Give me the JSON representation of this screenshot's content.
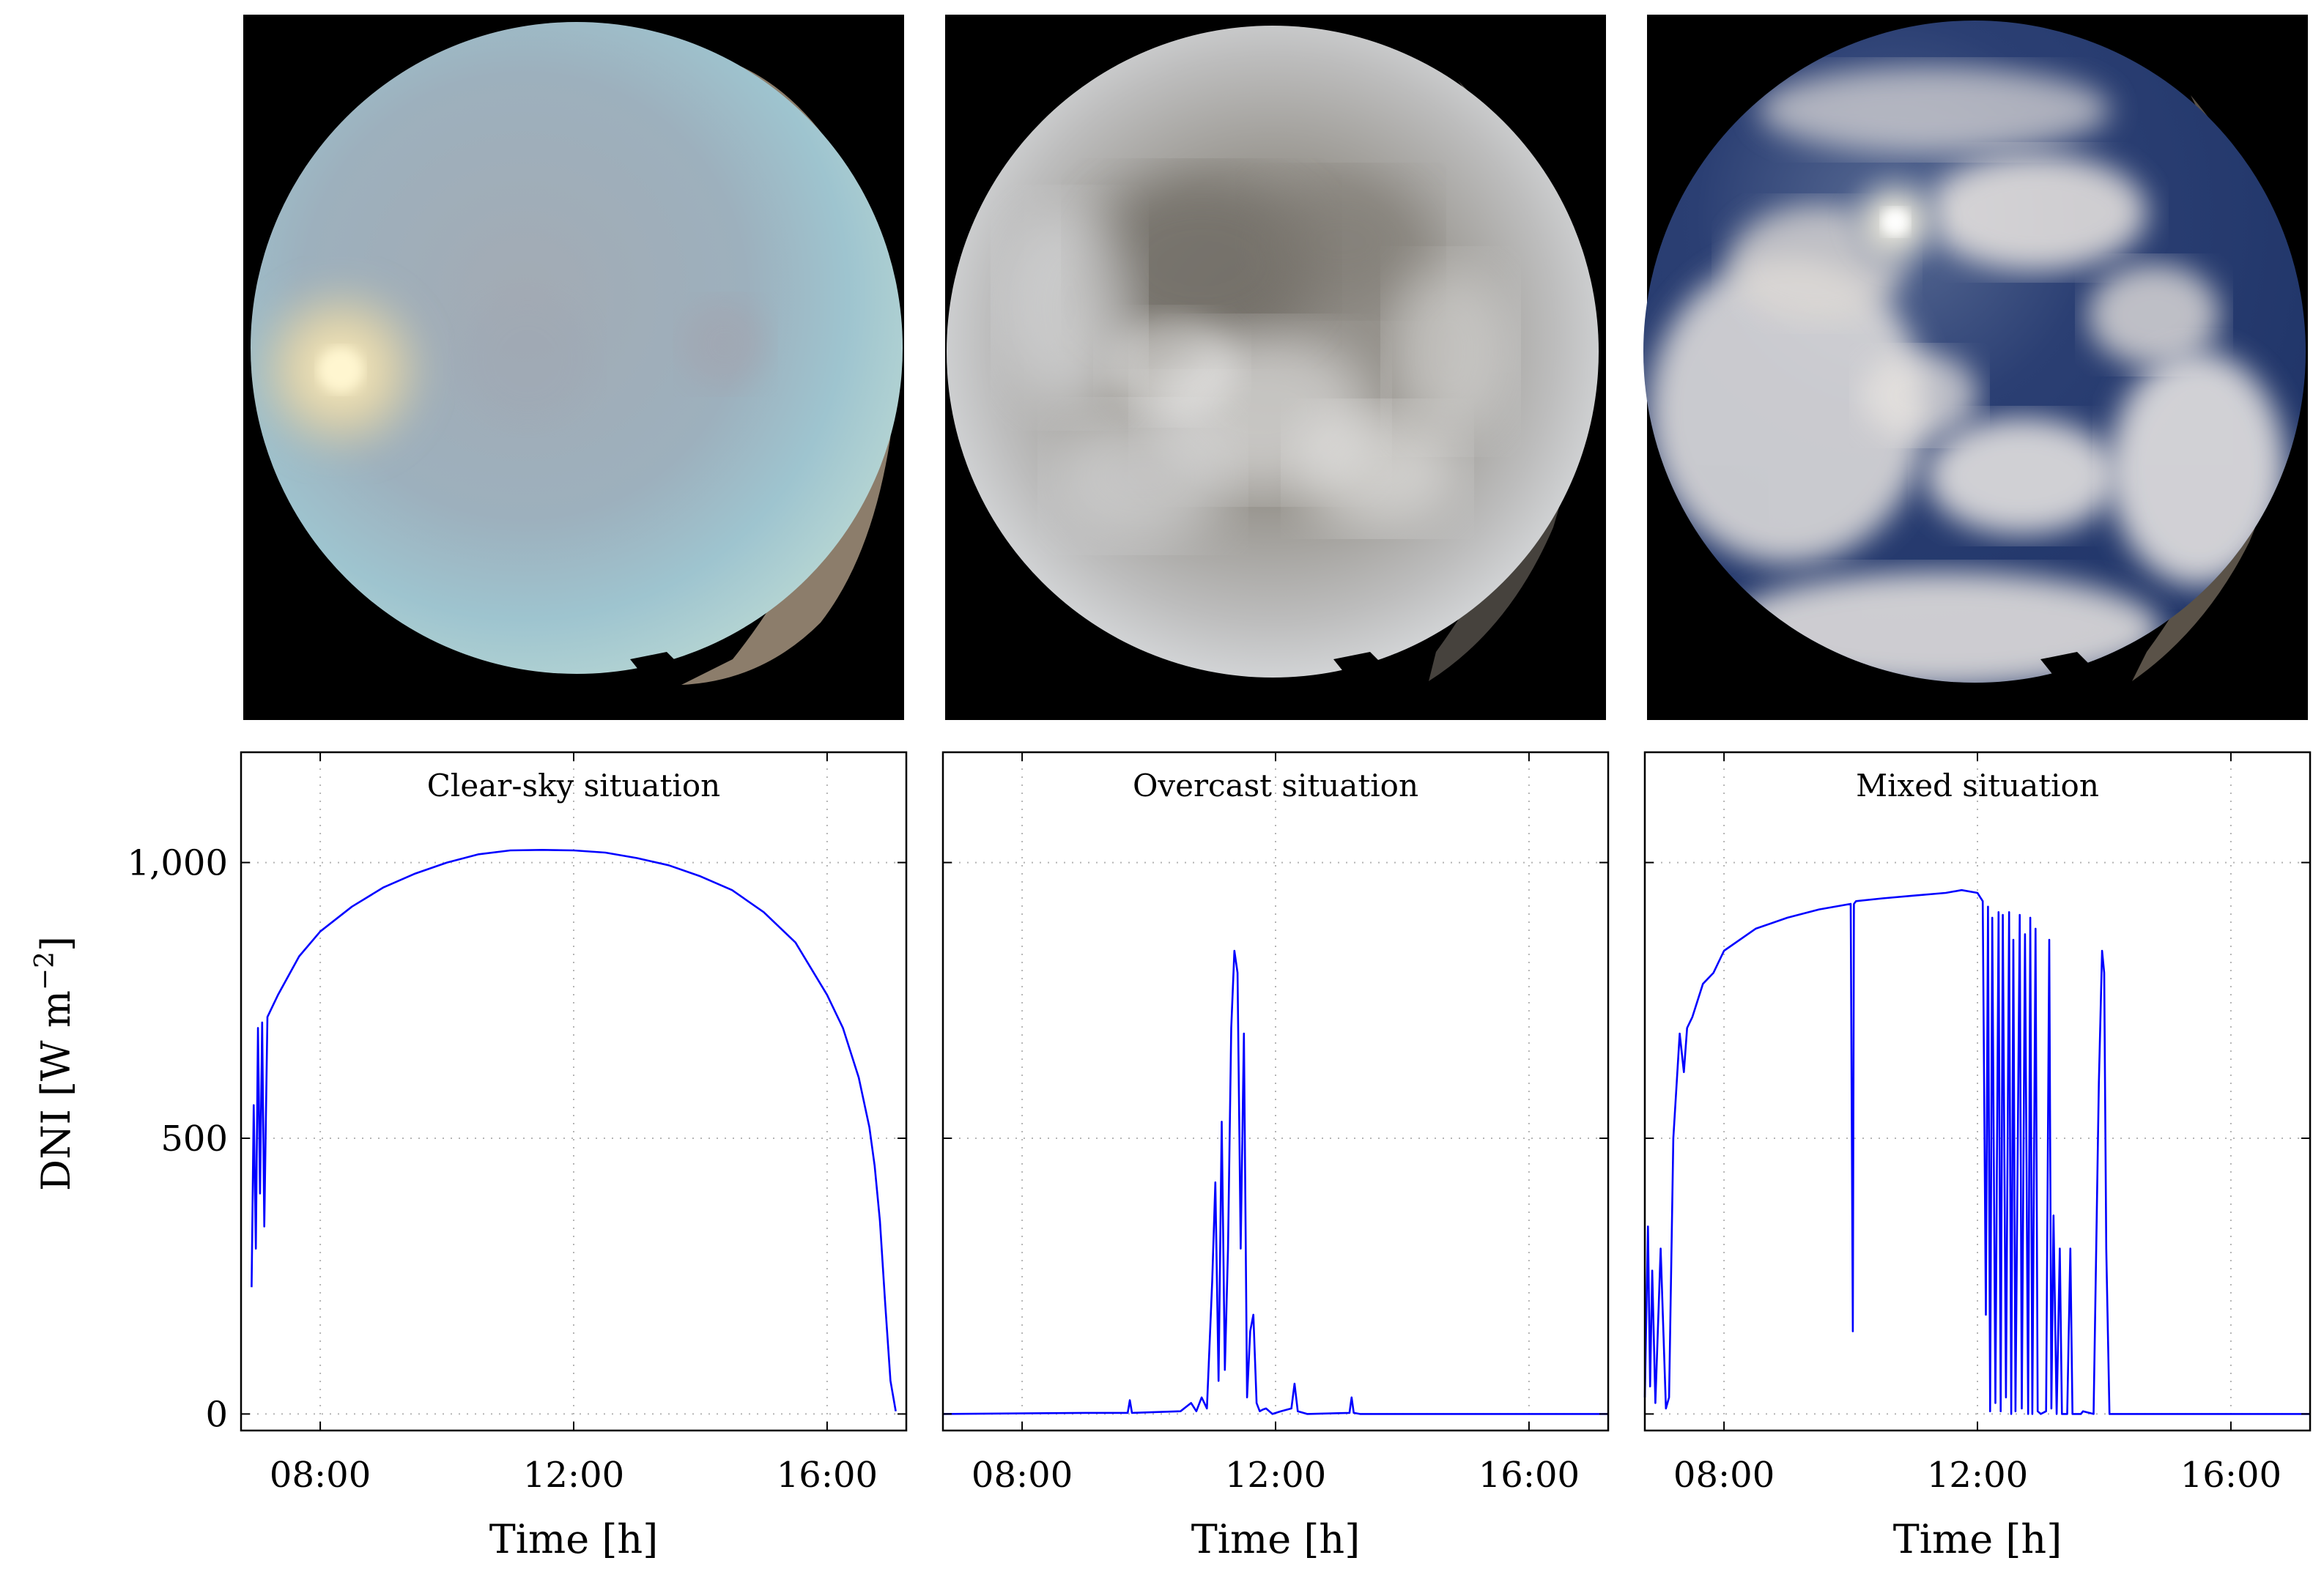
{
  "figure": {
    "y_axis_label": "DNI [W m",
    "y_axis_label_sup": "−2",
    "y_axis_label_close": "]"
  },
  "chart_data": [
    {
      "type": "line",
      "title": "Clear-sky situation",
      "xlabel": "Time [h]",
      "ylabel": "DNI [W m−2]",
      "x_range": [
        "06:45",
        "17:15"
      ],
      "ylim": [
        -30,
        1200
      ],
      "x_ticks": [
        "08:00",
        "12:00",
        "16:00"
      ],
      "y_ticks": [
        0,
        500,
        1000
      ],
      "y_tick_labels": [
        "0",
        "500",
        "1,000"
      ],
      "grid": true,
      "series": [
        {
          "color": "#0000ff",
          "x": [
            "06:55",
            "06:57",
            "06:59",
            "07:01",
            "07:03",
            "07:05",
            "07:07",
            "07:10",
            "07:20",
            "07:40",
            "08:00",
            "08:30",
            "09:00",
            "09:30",
            "10:00",
            "10:30",
            "11:00",
            "11:30",
            "12:00",
            "12:30",
            "13:00",
            "13:30",
            "14:00",
            "14:30",
            "15:00",
            "15:30",
            "16:00",
            "16:15",
            "16:30",
            "16:40",
            "16:45",
            "16:50",
            "16:55",
            "17:00",
            "17:05"
          ],
          "y": [
            230,
            560,
            300,
            700,
            400,
            710,
            340,
            720,
            760,
            830,
            875,
            920,
            955,
            980,
            1000,
            1015,
            1022,
            1023,
            1022,
            1018,
            1008,
            995,
            975,
            950,
            910,
            855,
            760,
            700,
            610,
            520,
            450,
            350,
            200,
            60,
            5
          ]
        }
      ]
    },
    {
      "type": "line",
      "title": "Overcast situation",
      "xlabel": "Time [h]",
      "ylabel": "",
      "x_range": [
        "06:45",
        "17:15"
      ],
      "ylim": [
        -30,
        1200
      ],
      "x_ticks": [
        "08:00",
        "12:00",
        "16:00"
      ],
      "y_ticks": [
        0,
        500,
        1000
      ],
      "y_tick_labels": [
        "",
        "",
        ""
      ],
      "grid": true,
      "series": [
        {
          "color": "#0000ff",
          "x": [
            "06:45",
            "09:00",
            "09:40",
            "09:42",
            "09:44",
            "10:30",
            "10:40",
            "10:45",
            "10:50",
            "10:55",
            "11:00",
            "11:03",
            "11:06",
            "11:09",
            "11:12",
            "11:15",
            "11:18",
            "11:21",
            "11:24",
            "11:27",
            "11:30",
            "11:33",
            "11:36",
            "11:39",
            "11:42",
            "11:45",
            "11:48",
            "11:51",
            "11:54",
            "11:57",
            "12:05",
            "12:15",
            "12:18",
            "12:21",
            "12:30",
            "13:10",
            "13:12",
            "13:14",
            "13:20",
            "17:15"
          ],
          "y": [
            0,
            2,
            2,
            25,
            2,
            5,
            20,
            5,
            30,
            10,
            240,
            420,
            60,
            530,
            80,
            300,
            700,
            840,
            800,
            300,
            690,
            30,
            150,
            180,
            20,
            5,
            8,
            10,
            5,
            0,
            5,
            10,
            55,
            5,
            0,
            2,
            30,
            2,
            0,
            0
          ]
        }
      ]
    },
    {
      "type": "line",
      "title": "Mixed situation",
      "xlabel": "Time [h]",
      "ylabel": "",
      "x_range": [
        "06:45",
        "17:15"
      ],
      "ylim": [
        -30,
        1200
      ],
      "x_ticks": [
        "08:00",
        "12:00",
        "16:00"
      ],
      "y_ticks": [
        0,
        500,
        1000
      ],
      "y_tick_labels": [
        "",
        "",
        ""
      ],
      "grid": true,
      "series": [
        {
          "color": "#0000ff",
          "x": [
            "06:45",
            "06:48",
            "06:50",
            "06:52",
            "06:55",
            "07:00",
            "07:05",
            "07:08",
            "07:12",
            "07:18",
            "07:22",
            "07:25",
            "07:30",
            "07:40",
            "07:50",
            "08:00",
            "08:30",
            "09:00",
            "09:30",
            "10:00",
            "10:02",
            "10:03",
            "10:05",
            "10:30",
            "11:00",
            "11:30",
            "11:45",
            "12:00",
            "12:05",
            "12:08",
            "12:10",
            "12:12",
            "12:14",
            "12:17",
            "12:20",
            "12:22",
            "12:24",
            "12:27",
            "12:30",
            "12:32",
            "12:34",
            "12:36",
            "12:40",
            "12:42",
            "12:45",
            "12:48",
            "12:50",
            "12:52",
            "12:55",
            "12:57",
            "13:00",
            "13:05",
            "13:08",
            "13:10",
            "13:12",
            "13:15",
            "13:18",
            "13:20",
            "13:25",
            "13:28",
            "13:30",
            "13:35",
            "13:38",
            "13:40",
            "13:50",
            "13:55",
            "13:58",
            "14:00",
            "14:02",
            "14:05",
            "14:10",
            "17:15"
          ],
          "y": [
            30,
            340,
            50,
            260,
            20,
            300,
            10,
            30,
            500,
            690,
            620,
            700,
            720,
            780,
            800,
            840,
            880,
            900,
            915,
            925,
            150,
            925,
            930,
            935,
            940,
            945,
            950,
            945,
            930,
            180,
            920,
            5,
            900,
            20,
            910,
            5,
            905,
            30,
            910,
            0,
            860,
            5,
            905,
            10,
            870,
            0,
            900,
            0,
            880,
            5,
            0,
            5,
            860,
            10,
            360,
            0,
            300,
            0,
            0,
            300,
            0,
            0,
            0,
            5,
            0,
            600,
            840,
            800,
            300,
            0,
            0,
            0
          ]
        }
      ]
    }
  ]
}
